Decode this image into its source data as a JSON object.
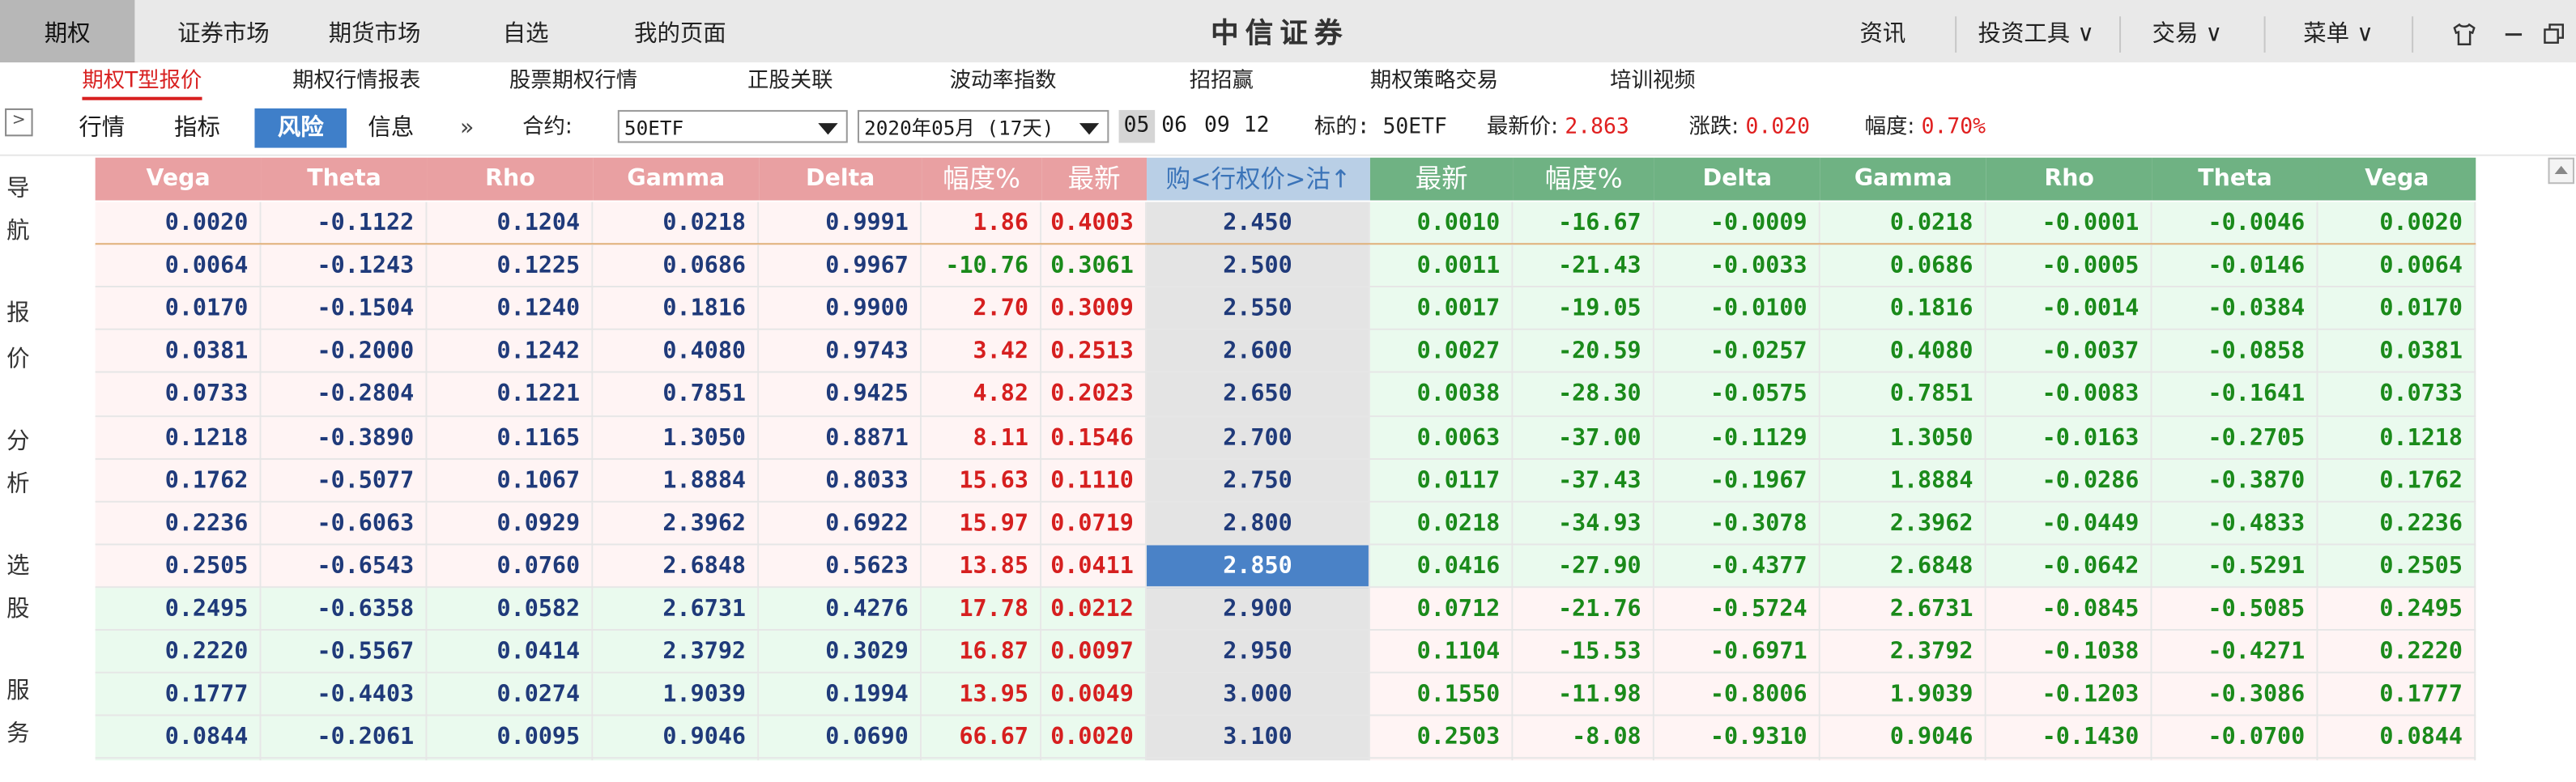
{
  "topbar": {
    "nav": [
      "期权",
      "证券市场",
      "期货市场",
      "自选",
      "我的页面"
    ],
    "brand": "中信证券",
    "right": [
      "资讯",
      "投资工具 ∨",
      "交易 ∨",
      "菜单 ∨"
    ],
    "icons": [
      "shirt-icon",
      "minimize-icon",
      "restore-icon"
    ]
  },
  "subtabs": [
    "期权T型报价",
    "期权行情报表",
    "股票期权行情",
    "正股关联",
    "波动率指数",
    "招招赢",
    "期权策略交易",
    "培训视频"
  ],
  "toolbar": {
    "tabs": [
      "行情",
      "指标",
      "风险",
      "信息"
    ],
    "more": "»",
    "contract_label": "合约:",
    "contract_value": "50ETF",
    "expiry_value": "2020年05月 (17天)",
    "months": [
      "05",
      "06",
      "09",
      "12"
    ],
    "underlying_label": "标的: 50ETF",
    "last_label": "最新价:",
    "last_value": "2.863",
    "change_label": "涨跌:",
    "change_value": "0.020",
    "pct_label": "幅度:",
    "pct_value": "0.70%"
  },
  "leftnav": [
    "导",
    "航",
    "报",
    "价",
    "分",
    "析",
    "选",
    "股",
    "服",
    "务"
  ],
  "table": {
    "headers": [
      "Vega",
      "Theta",
      "Rho",
      "Gamma",
      "Delta",
      "幅度%",
      "最新",
      "购<行权价>沽↑",
      "最新",
      "幅度%",
      "Delta",
      "Gamma",
      "Rho",
      "Theta",
      "Vega"
    ],
    "rows": [
      {
        "cv": "0.0020",
        "ct": "-0.1122",
        "cr": "0.1204",
        "cg": "0.0218",
        "cd": "0.9991",
        "cp": "1.86",
        "cl": "0.4003",
        "k": "2.450",
        "pl": "0.0010",
        "pp": "-16.67",
        "pd": "-0.0009",
        "pg": "0.0218",
        "pr": "-0.0001",
        "pt": "-0.0046",
        "pv": "0.0020"
      },
      {
        "cv": "0.0064",
        "ct": "-0.1243",
        "cr": "0.1225",
        "cg": "0.0686",
        "cd": "0.9967",
        "cp": "-10.76",
        "cl": "0.3061",
        "k": "2.500",
        "pl": "0.0011",
        "pp": "-21.43",
        "pd": "-0.0033",
        "pg": "0.0686",
        "pr": "-0.0005",
        "pt": "-0.0146",
        "pv": "0.0064"
      },
      {
        "cv": "0.0170",
        "ct": "-0.1504",
        "cr": "0.1240",
        "cg": "0.1816",
        "cd": "0.9900",
        "cp": "2.70",
        "cl": "0.3009",
        "k": "2.550",
        "pl": "0.0017",
        "pp": "-19.05",
        "pd": "-0.0100",
        "pg": "0.1816",
        "pr": "-0.0014",
        "pt": "-0.0384",
        "pv": "0.0170"
      },
      {
        "cv": "0.0381",
        "ct": "-0.2000",
        "cr": "0.1242",
        "cg": "0.4080",
        "cd": "0.9743",
        "cp": "3.42",
        "cl": "0.2513",
        "k": "2.600",
        "pl": "0.0027",
        "pp": "-20.59",
        "pd": "-0.0257",
        "pg": "0.4080",
        "pr": "-0.0037",
        "pt": "-0.0858",
        "pv": "0.0381"
      },
      {
        "cv": "0.0733",
        "ct": "-0.2804",
        "cr": "0.1221",
        "cg": "0.7851",
        "cd": "0.9425",
        "cp": "4.82",
        "cl": "0.2023",
        "k": "2.650",
        "pl": "0.0038",
        "pp": "-28.30",
        "pd": "-0.0575",
        "pg": "0.7851",
        "pr": "-0.0083",
        "pt": "-0.1641",
        "pv": "0.0733"
      },
      {
        "cv": "0.1218",
        "ct": "-0.3890",
        "cr": "0.1165",
        "cg": "1.3050",
        "cd": "0.8871",
        "cp": "8.11",
        "cl": "0.1546",
        "k": "2.700",
        "pl": "0.0063",
        "pp": "-37.00",
        "pd": "-0.1129",
        "pg": "1.3050",
        "pr": "-0.0163",
        "pt": "-0.2705",
        "pv": "0.1218"
      },
      {
        "cv": "0.1762",
        "ct": "-0.5077",
        "cr": "0.1067",
        "cg": "1.8884",
        "cd": "0.8033",
        "cp": "15.63",
        "cl": "0.1110",
        "k": "2.750",
        "pl": "0.0117",
        "pp": "-37.43",
        "pd": "-0.1967",
        "pg": "1.8884",
        "pr": "-0.0286",
        "pt": "-0.3870",
        "pv": "0.1762"
      },
      {
        "cv": "0.2236",
        "ct": "-0.6063",
        "cr": "0.0929",
        "cg": "2.3962",
        "cd": "0.6922",
        "cp": "15.97",
        "cl": "0.0719",
        "k": "2.800",
        "pl": "0.0218",
        "pp": "-34.93",
        "pd": "-0.3078",
        "pg": "2.3962",
        "pr": "-0.0449",
        "pt": "-0.4833",
        "pv": "0.2236"
      },
      {
        "cv": "0.2505",
        "ct": "-0.6543",
        "cr": "0.0760",
        "cg": "2.6848",
        "cd": "0.5623",
        "cp": "13.85",
        "cl": "0.0411",
        "k": "2.850",
        "pl": "0.0416",
        "pp": "-27.90",
        "pd": "-0.4377",
        "pg": "2.6848",
        "pr": "-0.0642",
        "pt": "-0.5291",
        "pv": "0.2505"
      },
      {
        "cv": "0.2495",
        "ct": "-0.6358",
        "cr": "0.0582",
        "cg": "2.6731",
        "cd": "0.4276",
        "cp": "17.78",
        "cl": "0.0212",
        "k": "2.900",
        "pl": "0.0712",
        "pp": "-21.76",
        "pd": "-0.5724",
        "pg": "2.6731",
        "pr": "-0.0845",
        "pt": "-0.5085",
        "pv": "0.2495"
      },
      {
        "cv": "0.2220",
        "ct": "-0.5567",
        "cr": "0.0414",
        "cg": "2.3792",
        "cd": "0.3029",
        "cp": "16.87",
        "cl": "0.0097",
        "k": "2.950",
        "pl": "0.1104",
        "pp": "-15.53",
        "pd": "-0.6971",
        "pg": "2.3792",
        "pr": "-0.1038",
        "pt": "-0.4271",
        "pv": "0.2220"
      },
      {
        "cv": "0.1777",
        "ct": "-0.4403",
        "cr": "0.0274",
        "cg": "1.9039",
        "cd": "0.1994",
        "cp": "13.95",
        "cl": "0.0049",
        "k": "3.000",
        "pl": "0.1550",
        "pp": "-11.98",
        "pd": "-0.8006",
        "pg": "1.9039",
        "pr": "-0.1203",
        "pt": "-0.3086",
        "pv": "0.1777"
      },
      {
        "cv": "0.0844",
        "ct": "-0.2061",
        "cr": "0.0095",
        "cg": "0.9046",
        "cd": "0.0690",
        "cp": "66.67",
        "cl": "0.0020",
        "k": "3.100",
        "pl": "0.2503",
        "pp": "-8.08",
        "pd": "-0.9310",
        "pg": "0.9046",
        "pr": "-0.1430",
        "pt": "-0.0700",
        "pv": "0.0844"
      }
    ],
    "selected_strike": "2.850",
    "atm_strike": "2.850"
  }
}
